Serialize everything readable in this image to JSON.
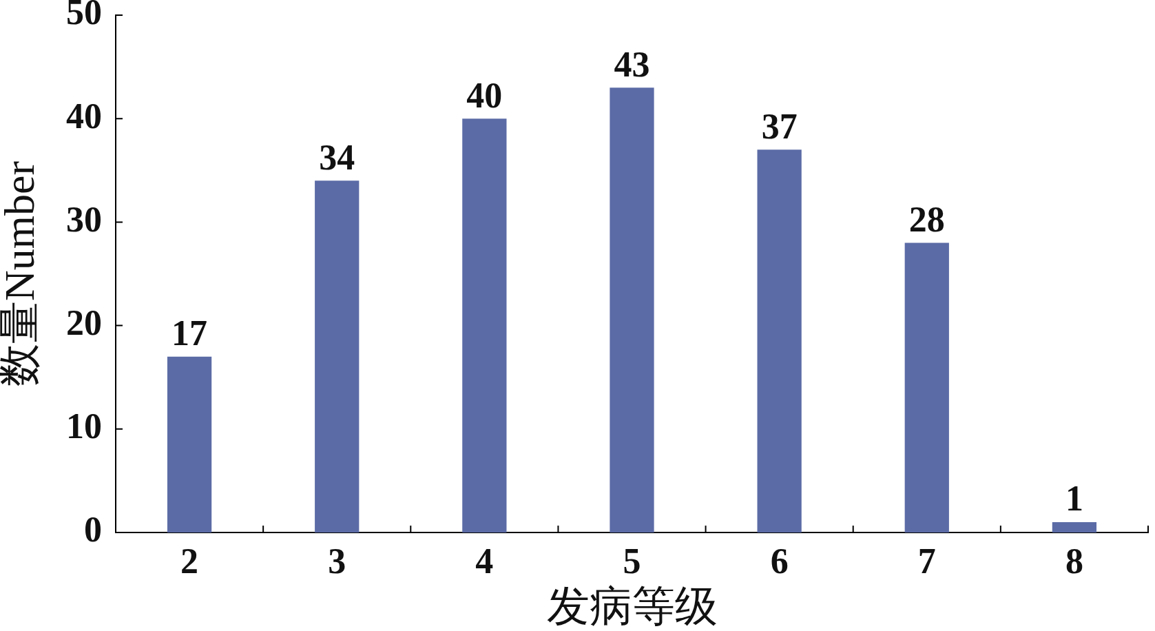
{
  "chart_data": {
    "type": "bar",
    "xlabel": "发病等级",
    "ylabel": "数量Number",
    "categories": [
      "2",
      "3",
      "4",
      "5",
      "6",
      "7",
      "8"
    ],
    "values": [
      17,
      34,
      40,
      43,
      37,
      28,
      1
    ],
    "color": "#5b6ba6",
    "ylim": [
      0,
      50
    ],
    "yticks": [
      0,
      10,
      20,
      30,
      40,
      50
    ],
    "data_labels": true,
    "grid": false,
    "legend": false
  }
}
